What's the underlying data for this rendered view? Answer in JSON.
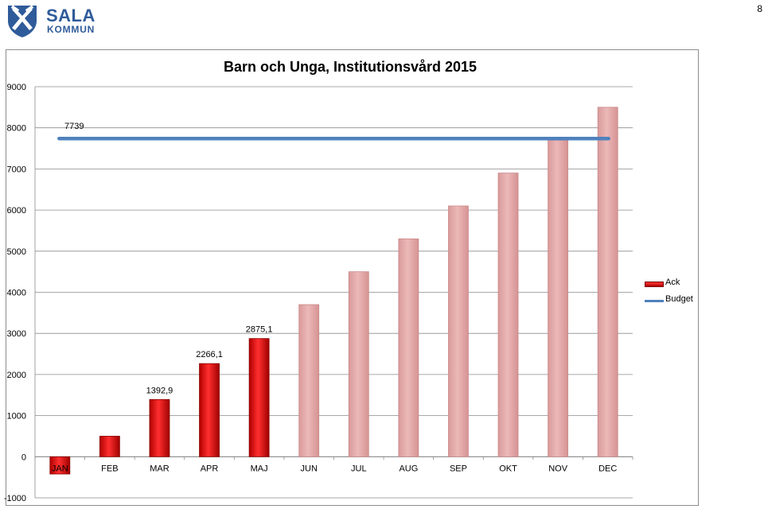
{
  "header": {
    "logo_title": "SALA",
    "logo_subtitle": "KOMMUN",
    "page_number": "8",
    "brand_color": "#2f5b9a"
  },
  "chart_data": {
    "type": "bar",
    "title": "Barn och Unga, Institutionsvård 2015",
    "xlabel": "",
    "ylabel": "",
    "ylim": [
      -1000,
      9000
    ],
    "yticks": [
      -1000,
      0,
      1000,
      2000,
      3000,
      4000,
      5000,
      6000,
      7000,
      8000,
      9000
    ],
    "grid": true,
    "legend_position": "right",
    "categories": [
      "JAN",
      "FEB",
      "MAR",
      "APR",
      "MAJ",
      "JUN",
      "JUL",
      "AUG",
      "SEP",
      "OKT",
      "NOV",
      "DEC"
    ],
    "series": [
      {
        "name": "Ack",
        "kind": "bar",
        "color": "#c00000",
        "faded_color": "#e0a3a3",
        "values": [
          -420,
          500,
          1392.9,
          2266.1,
          2875.1,
          3700,
          4500,
          5300,
          6100,
          6900,
          7700,
          8500
        ],
        "actual": [
          true,
          true,
          true,
          true,
          true,
          false,
          false,
          false,
          false,
          false,
          false,
          false
        ],
        "data_labels": [
          "",
          "",
          "1392,9",
          "2266,1",
          "2875,1",
          "",
          "",
          "",
          "",
          "",
          "",
          ""
        ]
      },
      {
        "name": "Budget",
        "kind": "line",
        "color": "#4f81bd",
        "value": 7739,
        "data_label": "7739"
      }
    ]
  }
}
